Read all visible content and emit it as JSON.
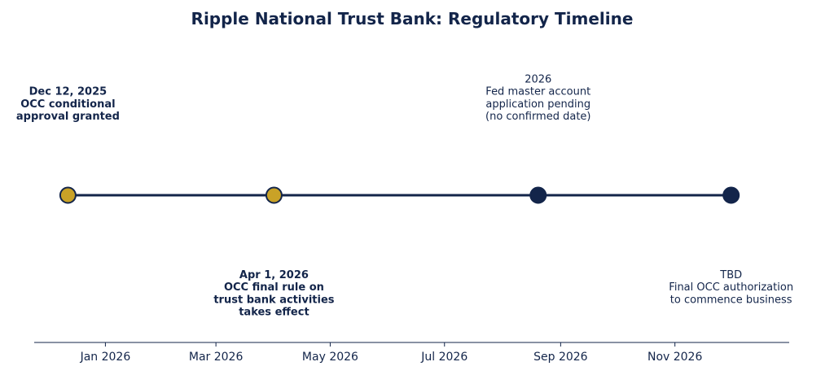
{
  "chart_data": {
    "type": "timeline",
    "title": "Ripple National Trust Bank: Regulatory Timeline",
    "x_axis": {
      "type": "date",
      "range": [
        "2025-11-24",
        "2027-01-01"
      ],
      "ticks": [
        {
          "date": "2026-01-01",
          "label": "Jan 2026"
        },
        {
          "date": "2026-03-01",
          "label": "Mar 2026"
        },
        {
          "date": "2026-05-01",
          "label": "May 2026"
        },
        {
          "date": "2026-07-01",
          "label": "Jul 2026"
        },
        {
          "date": "2026-09-01",
          "label": "Sep 2026"
        },
        {
          "date": "2026-11-01",
          "label": "Nov 2026"
        }
      ]
    },
    "events": [
      {
        "date": "2025-12-12",
        "status": "completed",
        "label_position": "above",
        "bold": true,
        "lines": [
          "Dec 12, 2025",
          "OCC conditional",
          "approval granted"
        ]
      },
      {
        "date": "2026-04-01",
        "status": "completed",
        "label_position": "below",
        "bold": true,
        "lines": [
          "Apr 1, 2026",
          "OCC final rule on",
          "trust bank activities",
          "takes effect"
        ]
      },
      {
        "date": "2026-08-20",
        "status": "pending",
        "label_position": "above",
        "bold": false,
        "lines": [
          "2026",
          "Fed master account",
          "application pending",
          "(no confirmed date)"
        ]
      },
      {
        "date": "2026-12-01",
        "status": "pending",
        "label_position": "below",
        "bold": false,
        "lines": [
          "TBD",
          "Final OCC authorization",
          "to commence business"
        ]
      }
    ],
    "colors": {
      "completed": "#c9a227",
      "pending": "#13254a",
      "line": "#13254a",
      "text": "#13254a"
    },
    "grid": false,
    "legend": "none"
  }
}
